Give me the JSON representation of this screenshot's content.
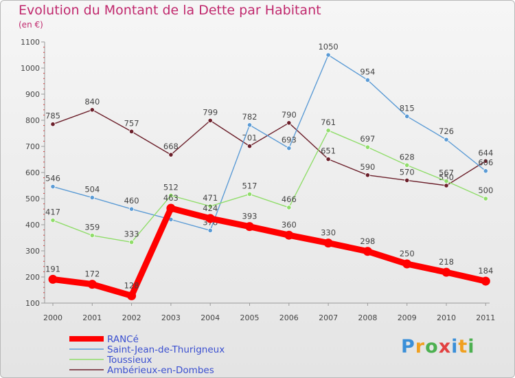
{
  "chart_data": {
    "type": "line",
    "title": "Evolution du Montant de la Dette par Habitant",
    "subtitle": "(en €)",
    "categories": [
      "2000",
      "2001",
      "2002",
      "2003",
      "2004",
      "2005",
      "2006",
      "2007",
      "2008",
      "2009",
      "2010",
      "2011"
    ],
    "y_ticks": [
      100,
      200,
      300,
      400,
      500,
      600,
      700,
      800,
      900,
      1000,
      1100
    ],
    "ylim": [
      100,
      1100
    ],
    "grid": false,
    "legend_position": "bottom-left",
    "series": [
      {
        "name": "Ambérieux-en-Dombes",
        "color": "#6b1f2a",
        "values": [
          785,
          840,
          757,
          668,
          799,
          701,
          790,
          651,
          590,
          570,
          550,
          644
        ],
        "labels": [
          "785",
          "840",
          "757",
          "668",
          "799",
          "701",
          "790",
          "651",
          "590",
          "570",
          "550",
          "644"
        ]
      },
      {
        "name": "Saint-Jean-de-Thurigneux",
        "color": "#5b9bd5",
        "values": [
          546,
          504,
          460,
          420,
          378,
          782,
          693,
          1050,
          954,
          815,
          726,
          606
        ],
        "labels": [
          "546",
          "504",
          "460",
          "",
          "378",
          "782",
          "693",
          "1050",
          "954",
          "815",
          "726",
          "606"
        ]
      },
      {
        "name": "Toussieux",
        "color": "#90dd6a",
        "values": [
          417,
          359,
          333,
          512,
          471,
          517,
          466,
          761,
          697,
          628,
          567,
          500
        ],
        "labels": [
          "417",
          "359",
          "333",
          "512",
          "471",
          "517",
          "466",
          "761",
          "697",
          "628",
          "567",
          "500"
        ]
      },
      {
        "name": "RANCé",
        "color": "#ff0000",
        "values": [
          191,
          172,
          128,
          463,
          424,
          393,
          360,
          330,
          298,
          250,
          218,
          184
        ],
        "labels": [
          "191",
          "172",
          "128",
          "463",
          "424",
          "393",
          "360",
          "330",
          "298",
          "250",
          "218",
          "184"
        ]
      }
    ]
  },
  "logo": {
    "text": "Proxiti",
    "colors": [
      "#3a8fd8",
      "#f0a020",
      "#4cb050",
      "#e24040",
      "#3a8fd8",
      "#f0a020",
      "#4cb050"
    ]
  }
}
